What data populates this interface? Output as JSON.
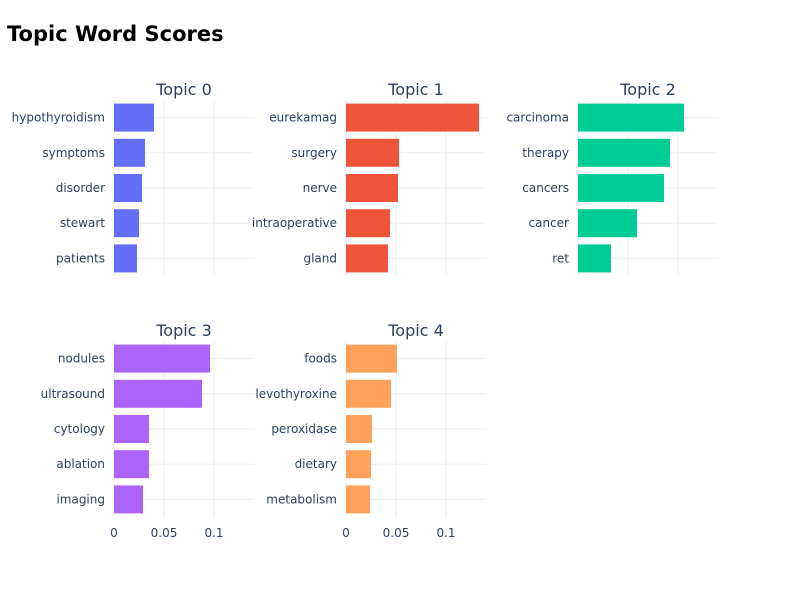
{
  "chart_title": "Topic Word Scores",
  "chart_data": {
    "type": "bar",
    "orientation": "horizontal",
    "title": "Topic Word Scores",
    "xlim": [
      0,
      0.14
    ],
    "xticks": [
      0,
      0.05,
      0.1
    ],
    "xtick_labels": [
      "0",
      "0.05",
      "0.1"
    ],
    "grid": true,
    "panels": [
      {
        "title": "Topic 0",
        "color": "#636efa",
        "words": [
          "hypothyroidism",
          "symptoms",
          "disorder",
          "stewart",
          "patients"
        ],
        "values": [
          0.04,
          0.031,
          0.028,
          0.025,
          0.023
        ]
      },
      {
        "title": "Topic 1",
        "color": "#ef553b",
        "words": [
          "eurekamag",
          "surgery",
          "nerve",
          "intraoperative",
          "gland"
        ],
        "values": [
          0.133,
          0.053,
          0.052,
          0.044,
          0.042
        ]
      },
      {
        "title": "Topic 2",
        "color": "#00cc96",
        "words": [
          "carcinoma",
          "therapy",
          "cancers",
          "cancer",
          "ret"
        ],
        "values": [
          0.106,
          0.092,
          0.086,
          0.059,
          0.033
        ]
      },
      {
        "title": "Topic 3",
        "color": "#ab63fa",
        "words": [
          "nodules",
          "ultrasound",
          "cytology",
          "ablation",
          "imaging"
        ],
        "values": [
          0.096,
          0.088,
          0.035,
          0.035,
          0.029
        ]
      },
      {
        "title": "Topic 4",
        "color": "#ffa15a",
        "words": [
          "foods",
          "levothyroxine",
          "peroxidase",
          "dietary",
          "metabolism"
        ],
        "values": [
          0.051,
          0.045,
          0.026,
          0.025,
          0.024
        ]
      }
    ]
  }
}
